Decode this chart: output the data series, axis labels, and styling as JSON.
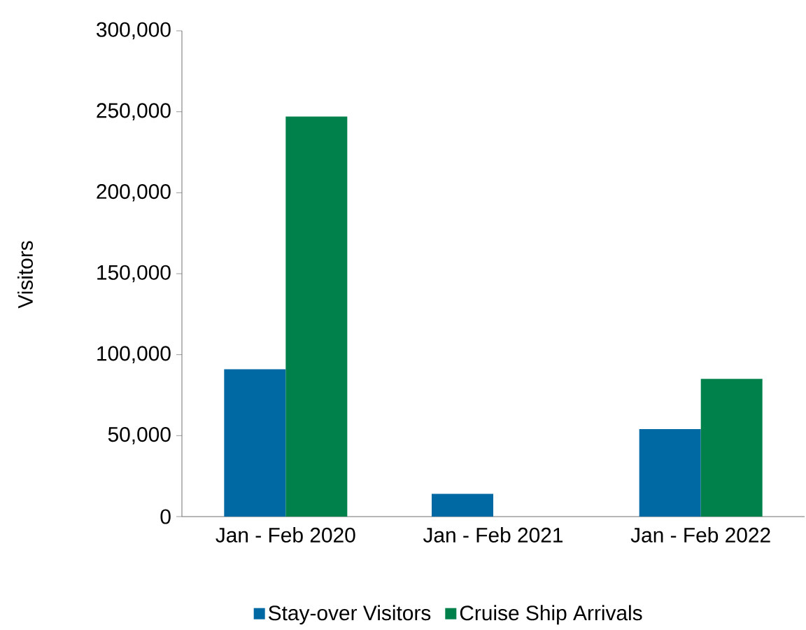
{
  "chart_data": {
    "type": "bar",
    "ylabel": "Visitors",
    "categories": [
      "Jan - Feb 2020",
      "Jan - Feb 2021",
      "Jan - Feb 2022"
    ],
    "series": [
      {
        "name": "Stay-over Visitors",
        "color": "#0069a3",
        "values": [
          91000,
          14000,
          54000
        ]
      },
      {
        "name": "Cruise Ship Arrivals",
        "color": "#00804a",
        "values": [
          247000,
          0,
          85000
        ]
      }
    ],
    "ylim": [
      0,
      300000
    ],
    "yticks": [
      {
        "value": 0,
        "label": "0"
      },
      {
        "value": 50000,
        "label": "50,000"
      },
      {
        "value": 100000,
        "label": "100,000"
      },
      {
        "value": 150000,
        "label": "150,000"
      },
      {
        "value": 200000,
        "label": "200,000"
      },
      {
        "value": 250000,
        "label": "250,000"
      },
      {
        "value": 300000,
        "label": "300,000"
      }
    ],
    "grid": false,
    "legend": "bottom"
  }
}
